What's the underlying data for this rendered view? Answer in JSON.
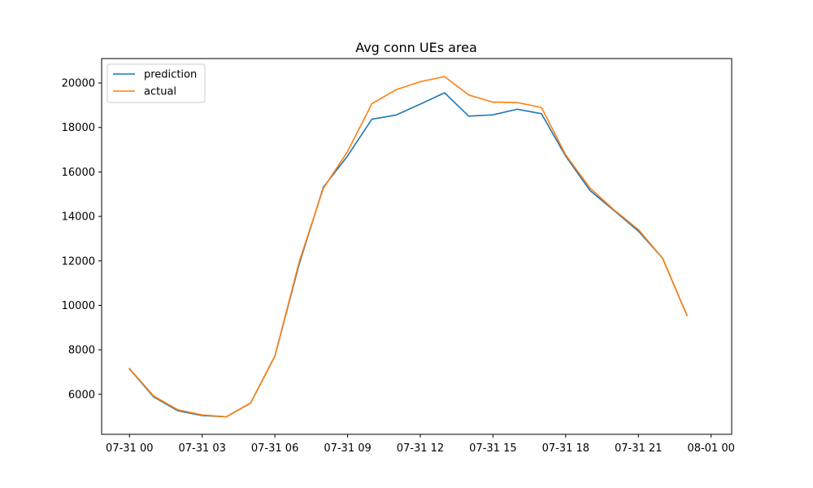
{
  "chart_data": {
    "type": "line",
    "title": "Avg conn UEs area",
    "xlabel": "",
    "ylabel": "",
    "x": [
      "07-31 00:00",
      "07-31 01:00",
      "07-31 02:00",
      "07-31 03:00",
      "07-31 04:00",
      "07-31 05:00",
      "07-31 06:00",
      "07-31 07:00",
      "07-31 08:00",
      "07-31 09:00",
      "07-31 10:00",
      "07-31 11:00",
      "07-31 12:00",
      "07-31 13:00",
      "07-31 14:00",
      "07-31 15:00",
      "07-31 16:00",
      "07-31 17:00",
      "07-31 18:00",
      "07-31 19:00",
      "07-31 20:00",
      "07-31 21:00",
      "07-31 22:00",
      "07-31 23:00"
    ],
    "x_ticks": [
      "07-31 00",
      "07-31 03",
      "07-31 06",
      "07-31 09",
      "07-31 12",
      "07-31 15",
      "07-31 18",
      "07-31 21",
      "08-01 00"
    ],
    "xlim": [
      "07-30 22:51",
      "08-01 00:51"
    ],
    "ylim": [
      4200,
      21100
    ],
    "y_ticks": [
      6000,
      8000,
      10000,
      12000,
      14000,
      16000,
      18000,
      20000
    ],
    "y_tick_labels": [
      "6000",
      "8000",
      "10000",
      "12000",
      "14000",
      "16000",
      "18000",
      "20000"
    ],
    "legend_position": "top-left",
    "grid": false,
    "series": [
      {
        "name": "prediction",
        "color": "#1f77b4",
        "values": [
          7140,
          5880,
          5260,
          5040,
          4990,
          5610,
          7720,
          11840,
          15310,
          16720,
          18370,
          18560,
          19050,
          19560,
          18510,
          18570,
          18820,
          18620,
          16710,
          15170,
          14260,
          13340,
          12120,
          9550
        ]
      },
      {
        "name": "actual",
        "color": "#ff7f0e",
        "values": [
          7160,
          5920,
          5300,
          5070,
          4990,
          5610,
          7710,
          11940,
          15260,
          16920,
          19070,
          19700,
          20060,
          20290,
          19460,
          19140,
          19120,
          18900,
          16770,
          15280,
          14290,
          13410,
          12120,
          9550
        ]
      }
    ]
  }
}
